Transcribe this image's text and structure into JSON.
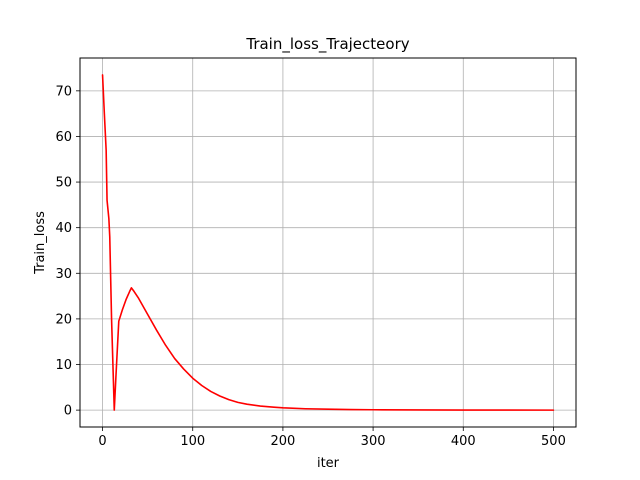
{
  "chart_data": {
    "type": "line",
    "title": "Train_loss_Trajecteory",
    "xlabel": "iter",
    "ylabel": "Train_loss",
    "xlim": [
      -25,
      525
    ],
    "ylim": [
      -3.7,
      77.2
    ],
    "grid": true,
    "xticks": [
      0,
      100,
      200,
      300,
      400,
      500
    ],
    "yticks": [
      0,
      10,
      20,
      30,
      40,
      50,
      60,
      70
    ],
    "series": [
      {
        "color": "#ff0000",
        "points": [
          [
            0,
            73.5
          ],
          [
            2,
            65
          ],
          [
            4,
            57
          ],
          [
            5,
            46
          ],
          [
            7,
            42
          ],
          [
            8,
            38
          ],
          [
            10,
            20
          ],
          [
            13,
            0
          ],
          [
            15,
            8
          ],
          [
            18,
            19.5
          ],
          [
            22,
            22
          ],
          [
            26,
            24.2
          ],
          [
            30,
            26
          ],
          [
            32,
            26.8
          ],
          [
            35,
            26
          ],
          [
            40,
            24.5
          ],
          [
            50,
            21
          ],
          [
            60,
            17.5
          ],
          [
            70,
            14.2
          ],
          [
            80,
            11.3
          ],
          [
            90,
            9
          ],
          [
            100,
            7
          ],
          [
            110,
            5.4
          ],
          [
            120,
            4.1
          ],
          [
            130,
            3.1
          ],
          [
            140,
            2.3
          ],
          [
            150,
            1.7
          ],
          [
            160,
            1.3
          ],
          [
            175,
            0.9
          ],
          [
            190,
            0.65
          ],
          [
            200,
            0.5
          ],
          [
            225,
            0.3
          ],
          [
            250,
            0.2
          ],
          [
            275,
            0.12
          ],
          [
            300,
            0.08
          ],
          [
            350,
            0.04
          ],
          [
            400,
            0.02
          ],
          [
            450,
            0.01
          ],
          [
            500,
            0
          ]
        ]
      }
    ]
  }
}
